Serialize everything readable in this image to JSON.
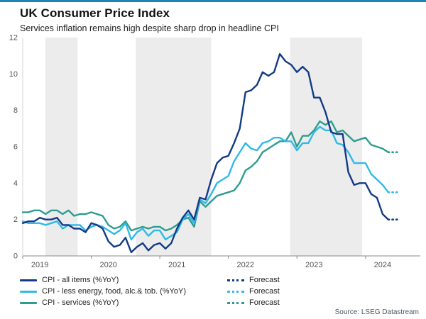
{
  "page": {
    "title": "UK Consumer Price Index",
    "subtitle": "Services inflation remains high despite sharp drop in headline CPI",
    "source": "Source: LSEG Datastream",
    "accent_bar_color": "#1a85b4"
  },
  "chart_data": {
    "type": "line",
    "title": "UK Consumer Price Index",
    "subtitle": "Services inflation remains high despite sharp drop in headline CPI",
    "x_interval": "monthly",
    "x_start_year": 2019,
    "x_domain": [
      2019.0,
      2024.8
    ],
    "y_domain": [
      0,
      12
    ],
    "y_ticks": [
      0,
      2,
      4,
      6,
      8,
      10,
      12
    ],
    "x_tick_years": [
      2019,
      2020,
      2021,
      2022,
      2023,
      2024
    ],
    "x_label_offset": 0.25,
    "grid": false,
    "legend_position": "bottom",
    "band_color": "#ececec",
    "shaded_periods": [
      [
        2019.33,
        2019.8
      ],
      [
        2020.65,
        2021.75
      ],
      [
        2022.9,
        2023.95
      ]
    ],
    "series": [
      {
        "name": "CPI - all items (%YoY)",
        "forecast_label": "Forecast",
        "color": "#133a85",
        "values": [
          1.8,
          1.9,
          1.9,
          2.1,
          2.0,
          2.0,
          2.1,
          1.7,
          1.7,
          1.5,
          1.5,
          1.3,
          1.8,
          1.7,
          1.5,
          0.8,
          0.5,
          0.6,
          1.0,
          0.2,
          0.5,
          0.7,
          0.3,
          0.6,
          0.7,
          0.4,
          0.7,
          1.5,
          2.1,
          2.5,
          2.0,
          3.2,
          3.1,
          4.2,
          5.1,
          5.4,
          5.5,
          6.2,
          7.0,
          9.0,
          9.1,
          9.4,
          10.1,
          9.9,
          10.1,
          11.1,
          10.7,
          10.5,
          10.1,
          10.4,
          10.1,
          8.7,
          8.7,
          7.9,
          6.8,
          6.7,
          6.7,
          4.6,
          3.9,
          4.0,
          4.0,
          3.4,
          3.2,
          2.3,
          2.0
        ],
        "forecast": [
          2.0,
          2.0
        ]
      },
      {
        "name": "CPI - less energy, food, alc.& tob. (%YoY)",
        "forecast_label": "Forecast",
        "color": "#30b9e9",
        "values": [
          1.9,
          1.8,
          1.8,
          1.8,
          1.7,
          1.8,
          1.9,
          1.5,
          1.7,
          1.7,
          1.7,
          1.4,
          1.6,
          1.7,
          1.6,
          1.4,
          1.2,
          1.4,
          1.8,
          0.9,
          1.3,
          1.5,
          1.1,
          1.4,
          1.4,
          0.9,
          1.1,
          1.3,
          2.0,
          2.3,
          1.8,
          3.1,
          2.9,
          3.4,
          4.0,
          4.2,
          4.4,
          5.2,
          5.7,
          6.2,
          5.9,
          5.8,
          6.2,
          6.3,
          6.5,
          6.5,
          6.3,
          6.3,
          5.8,
          6.2,
          6.2,
          6.8,
          7.1,
          6.9,
          6.9,
          6.2,
          6.1,
          5.7,
          5.1,
          5.1,
          5.1,
          4.5,
          4.2,
          3.9,
          3.5
        ],
        "forecast": [
          3.5,
          3.5
        ]
      },
      {
        "name": "CPI - services (%YoY)",
        "forecast_label": "Forecast",
        "color": "#2e9c8e",
        "values": [
          2.4,
          2.4,
          2.5,
          2.5,
          2.3,
          2.5,
          2.5,
          2.3,
          2.5,
          2.2,
          2.3,
          2.3,
          2.4,
          2.3,
          2.2,
          1.7,
          1.5,
          1.6,
          1.9,
          1.4,
          1.5,
          1.6,
          1.5,
          1.6,
          1.6,
          1.4,
          1.5,
          1.7,
          2.0,
          2.1,
          1.6,
          3.0,
          2.7,
          3.0,
          3.3,
          3.4,
          3.5,
          3.6,
          4.0,
          4.7,
          4.9,
          5.2,
          5.7,
          5.9,
          6.1,
          6.3,
          6.3,
          6.8,
          6.0,
          6.6,
          6.6,
          6.9,
          7.4,
          7.2,
          7.4,
          6.8,
          6.9,
          6.6,
          6.3,
          6.4,
          6.5,
          6.1,
          6.0,
          5.9,
          5.7
        ],
        "forecast": [
          5.7,
          5.7
        ]
      }
    ]
  }
}
